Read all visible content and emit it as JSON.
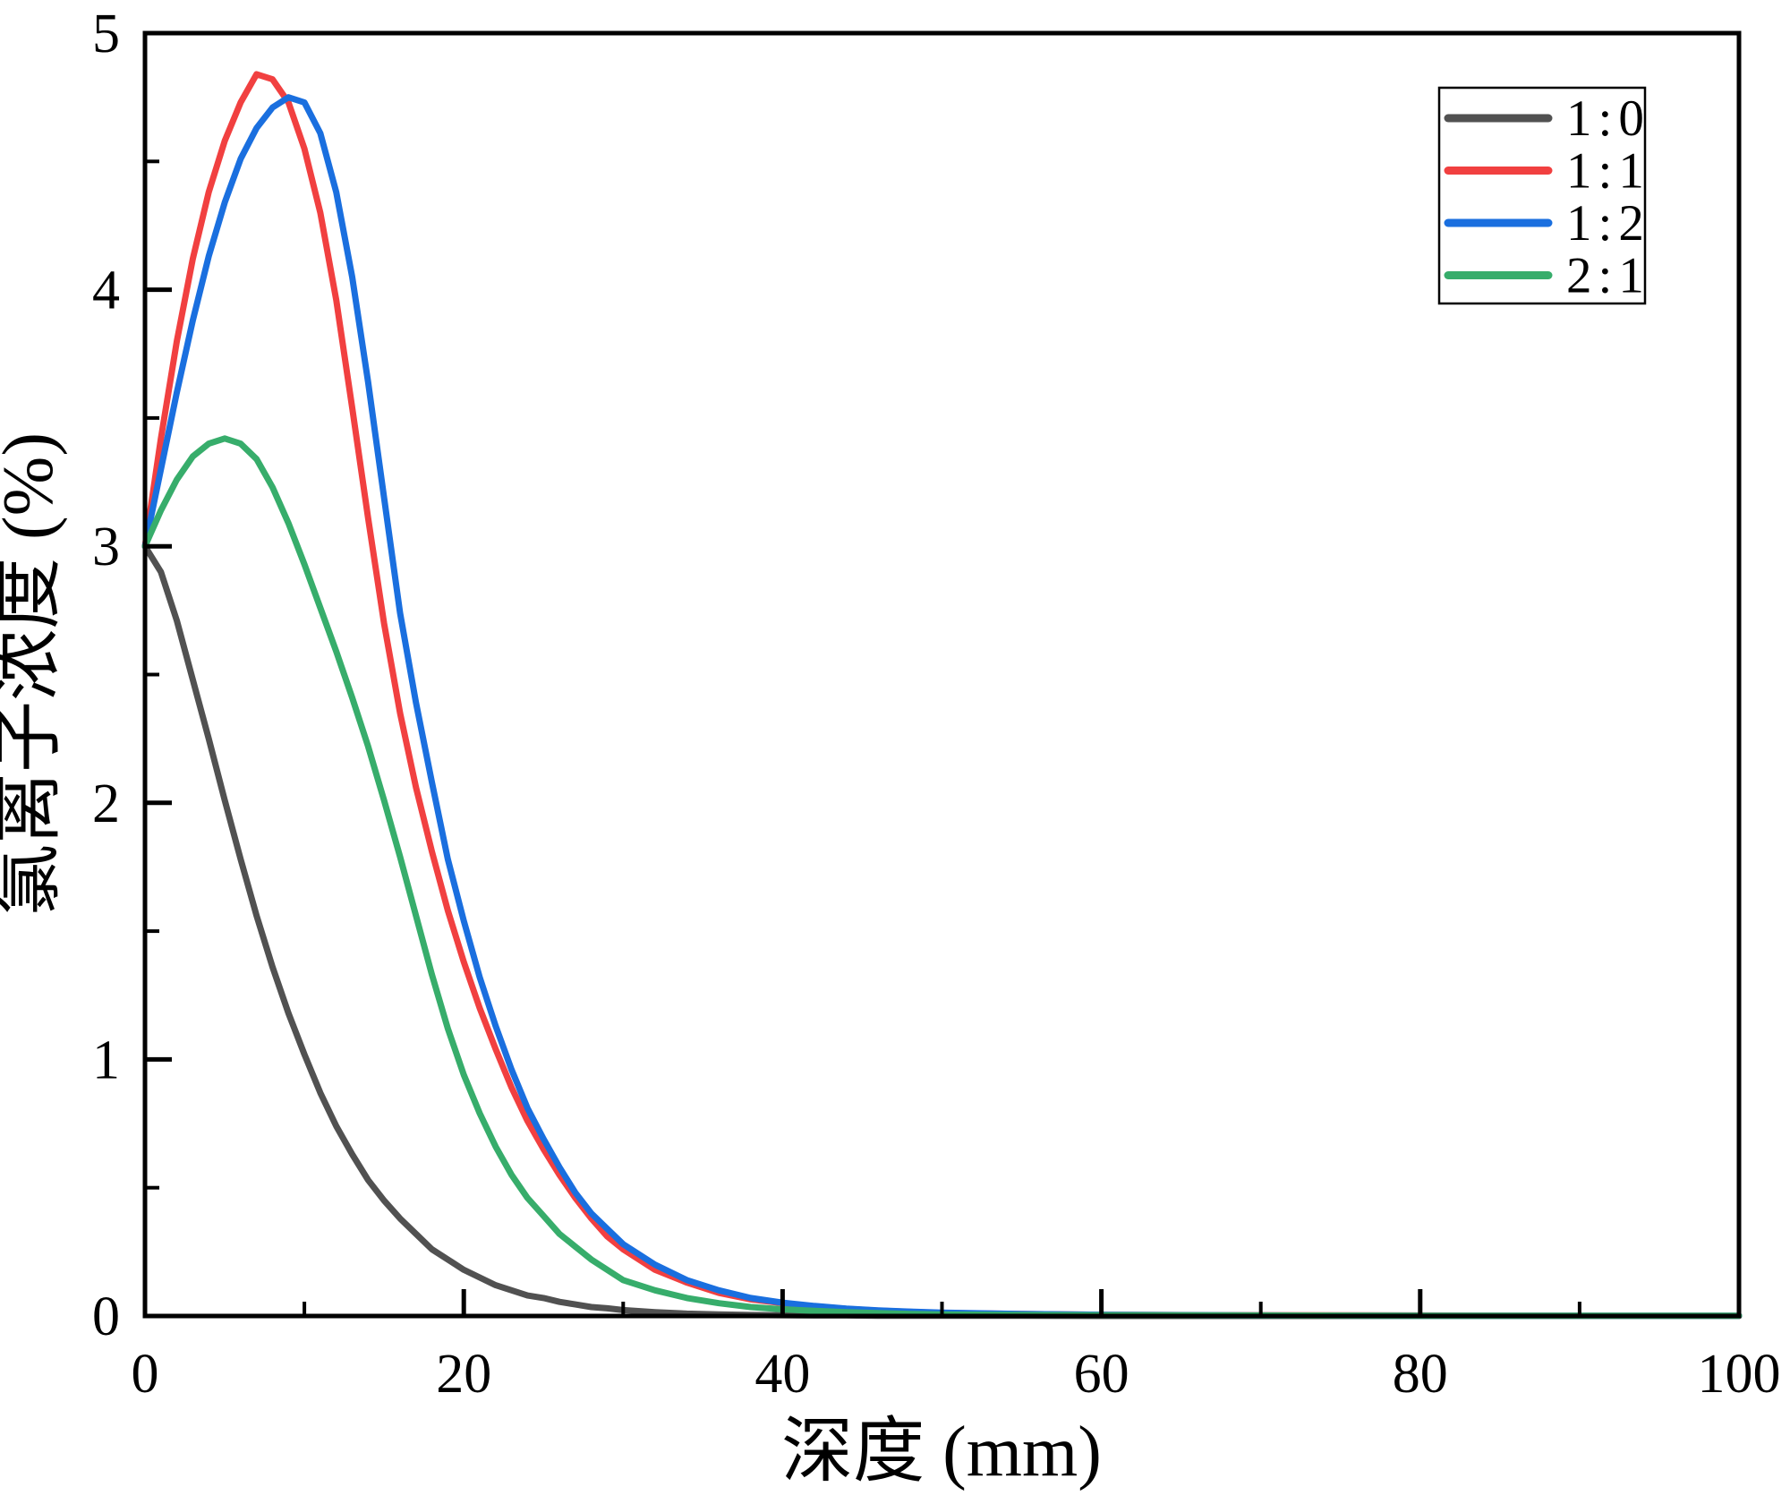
{
  "chart_data": {
    "type": "line",
    "title": "",
    "xlabel": "深度 (mm)",
    "ylabel": "氯离子浓度 (%)",
    "xlim": [
      0,
      100
    ],
    "ylim": [
      0,
      5
    ],
    "x_major_ticks": [
      0,
      20,
      40,
      60,
      80,
      100
    ],
    "x_minor_ticks": [
      10,
      30,
      50,
      70,
      90
    ],
    "y_major_ticks": [
      0,
      1,
      2,
      3,
      4,
      5
    ],
    "y_minor_ticks": [
      0.5,
      1.5,
      2.5,
      3.5,
      4.5
    ],
    "grid": false,
    "legend_position": "top-right",
    "background_color": "#ffffff",
    "axis_color": "#000000",
    "x": [
      0,
      1,
      2,
      3,
      4,
      5,
      6,
      7,
      8,
      9,
      10,
      11,
      12,
      13,
      14,
      15,
      16,
      17,
      18,
      19,
      20,
      21,
      22,
      23,
      24,
      25,
      26,
      27,
      28,
      29,
      30,
      32,
      34,
      36,
      38,
      40,
      42,
      44,
      46,
      48,
      50,
      55,
      60,
      70,
      80,
      90,
      100
    ],
    "series": [
      {
        "name": "1:0",
        "color": "#515151",
        "values": [
          3.0,
          2.9,
          2.71,
          2.48,
          2.25,
          2.01,
          1.78,
          1.56,
          1.36,
          1.18,
          1.02,
          0.87,
          0.74,
          0.63,
          0.53,
          0.45,
          0.38,
          0.32,
          0.26,
          0.22,
          0.18,
          0.15,
          0.12,
          0.1,
          0.08,
          0.07,
          0.055,
          0.045,
          0.035,
          0.03,
          0.023,
          0.015,
          0.009,
          0.006,
          0.004,
          0.003,
          0.002,
          0.002,
          0.001,
          0.001,
          0.001,
          0.001,
          0,
          0,
          0,
          0,
          0
        ]
      },
      {
        "name": "1:1",
        "color": "#F14040",
        "values": [
          3.0,
          3.42,
          3.8,
          4.12,
          4.38,
          4.58,
          4.73,
          4.84,
          4.82,
          4.73,
          4.55,
          4.3,
          3.96,
          3.54,
          3.11,
          2.7,
          2.35,
          2.06,
          1.81,
          1.58,
          1.38,
          1.2,
          1.04,
          0.89,
          0.76,
          0.65,
          0.55,
          0.46,
          0.38,
          0.31,
          0.26,
          0.18,
          0.13,
          0.09,
          0.065,
          0.05,
          0.038,
          0.028,
          0.021,
          0.016,
          0.012,
          0.008,
          0.005,
          0.003,
          0.002,
          0.001,
          0.001
        ]
      },
      {
        "name": "1:2",
        "color": "#1A6FDF",
        "values": [
          3.0,
          3.3,
          3.6,
          3.88,
          4.13,
          4.34,
          4.51,
          4.63,
          4.71,
          4.75,
          4.73,
          4.61,
          4.38,
          4.05,
          3.64,
          3.19,
          2.74,
          2.39,
          2.08,
          1.78,
          1.54,
          1.32,
          1.13,
          0.96,
          0.81,
          0.69,
          0.58,
          0.48,
          0.4,
          0.34,
          0.28,
          0.2,
          0.14,
          0.1,
          0.07,
          0.052,
          0.039,
          0.029,
          0.022,
          0.017,
          0.013,
          0.008,
          0.005,
          0.002,
          0.001,
          0.001,
          0.001
        ]
      },
      {
        "name": "2:1",
        "color": "#37AD6B",
        "values": [
          3.0,
          3.14,
          3.26,
          3.35,
          3.4,
          3.42,
          3.4,
          3.34,
          3.23,
          3.09,
          2.93,
          2.76,
          2.59,
          2.41,
          2.22,
          2.01,
          1.79,
          1.56,
          1.33,
          1.12,
          0.94,
          0.79,
          0.66,
          0.55,
          0.46,
          0.39,
          0.32,
          0.27,
          0.22,
          0.18,
          0.14,
          0.1,
          0.07,
          0.05,
          0.035,
          0.026,
          0.02,
          0.015,
          0.011,
          0.008,
          0.006,
          0.004,
          0.003,
          0.002,
          0.001,
          0.001,
          0.001
        ]
      }
    ]
  }
}
